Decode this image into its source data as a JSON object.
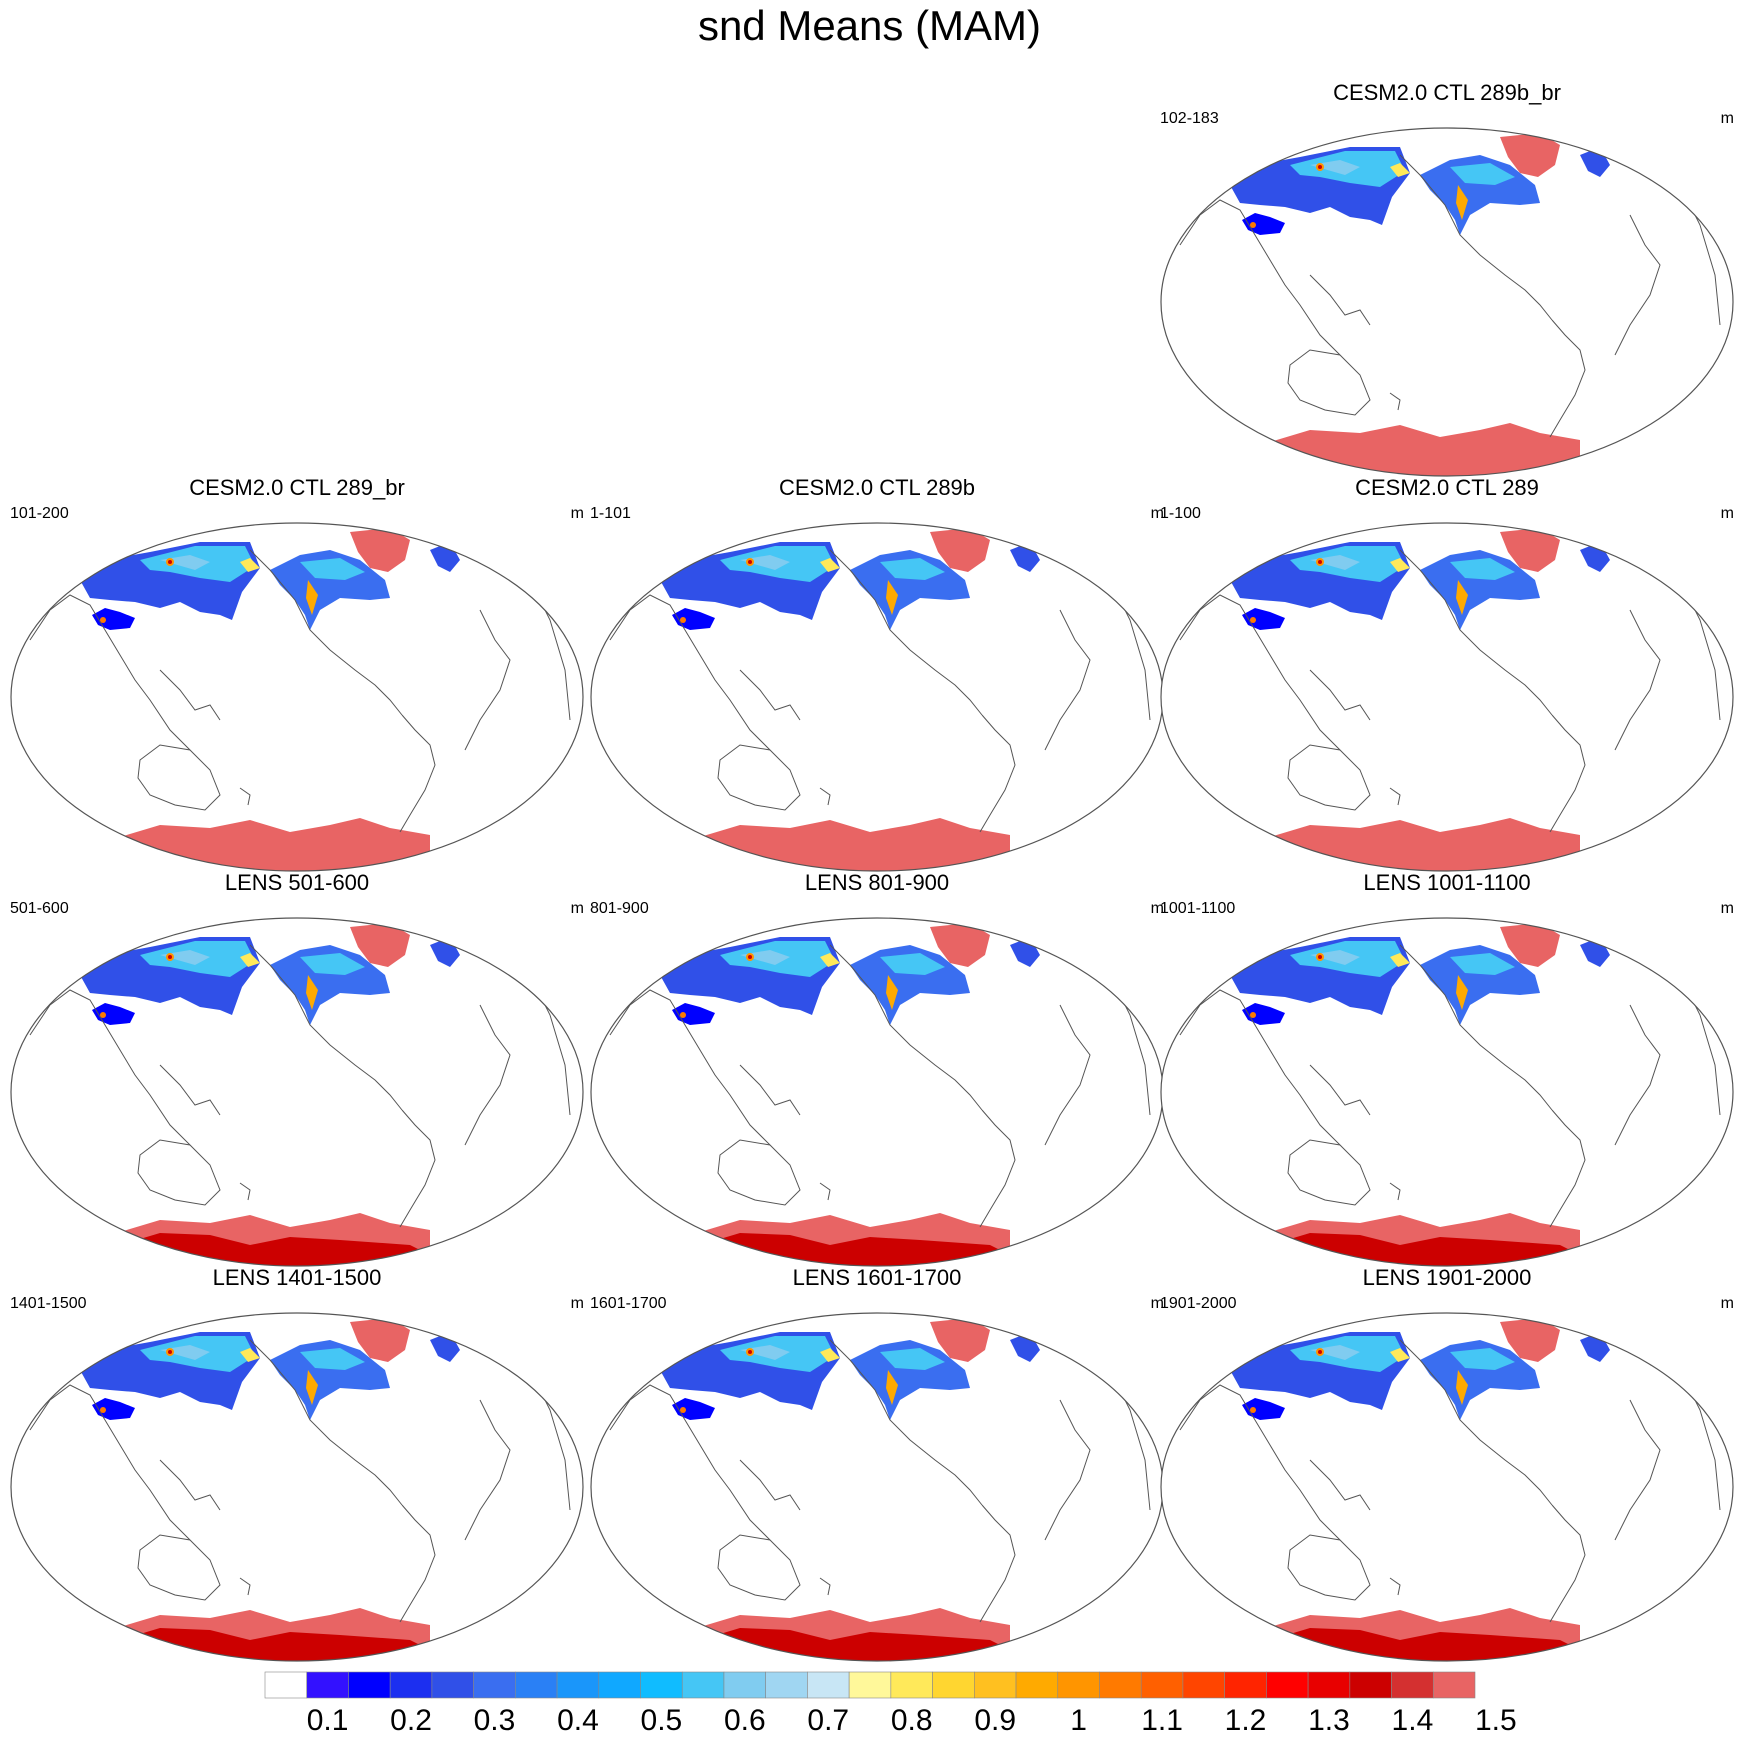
{
  "title": "snd Means (MAM)",
  "panels": [
    {
      "title": "CESM2.0 CTL 289b_br",
      "years": "102-183",
      "units": "m",
      "ensemble": "ctl"
    },
    {
      "title": "CESM2.0 CTL 289_br",
      "years": "101-200",
      "units": "m",
      "ensemble": "ctl"
    },
    {
      "title": "CESM2.0 CTL 289b",
      "years": "1-101",
      "units": "m",
      "ensemble": "ctl"
    },
    {
      "title": "CESM2.0 CTL 289",
      "years": "1-100",
      "units": "m",
      "ensemble": "ctl"
    },
    {
      "title": "LENS 501-600",
      "years": "501-600",
      "units": "m",
      "ensemble": "lens"
    },
    {
      "title": "LENS 801-900",
      "years": "801-900",
      "units": "m",
      "ensemble": "lens"
    },
    {
      "title": "LENS 1001-1100",
      "years": "1001-1100",
      "units": "m",
      "ensemble": "lens"
    },
    {
      "title": "LENS 1401-1500",
      "years": "1401-1500",
      "units": "m",
      "ensemble": "lens"
    },
    {
      "title": "LENS 1601-1700",
      "years": "1601-1700",
      "units": "m",
      "ensemble": "lens"
    },
    {
      "title": "LENS 1901-2000",
      "years": "1901-2000",
      "units": "m",
      "ensemble": "lens"
    }
  ],
  "colorbar": {
    "labels": [
      "0.1",
      "0.2",
      "0.3",
      "0.4",
      "0.5",
      "0.6",
      "0.7",
      "0.8",
      "0.9",
      "1",
      "1.1",
      "1.2",
      "1.3",
      "1.4",
      "1.5"
    ],
    "colors": [
      "#ffffff",
      "#3311ff",
      "#0000ff",
      "#1c2ff0",
      "#3050e8",
      "#3a6ef0",
      "#2a80f5",
      "#1a96fa",
      "#10a8ff",
      "#10bcff",
      "#45c6f5",
      "#80ccf0",
      "#a0d6f2",
      "#c8e6f5",
      "#fff89a",
      "#ffe95a",
      "#ffd630",
      "#ffc020",
      "#ffaa00",
      "#ff9500",
      "#ff7a00",
      "#ff6000",
      "#ff4500",
      "#ff2400",
      "#ff0000",
      "#e80000",
      "#cc0000",
      "#d43030",
      "#e86464"
    ]
  }
}
